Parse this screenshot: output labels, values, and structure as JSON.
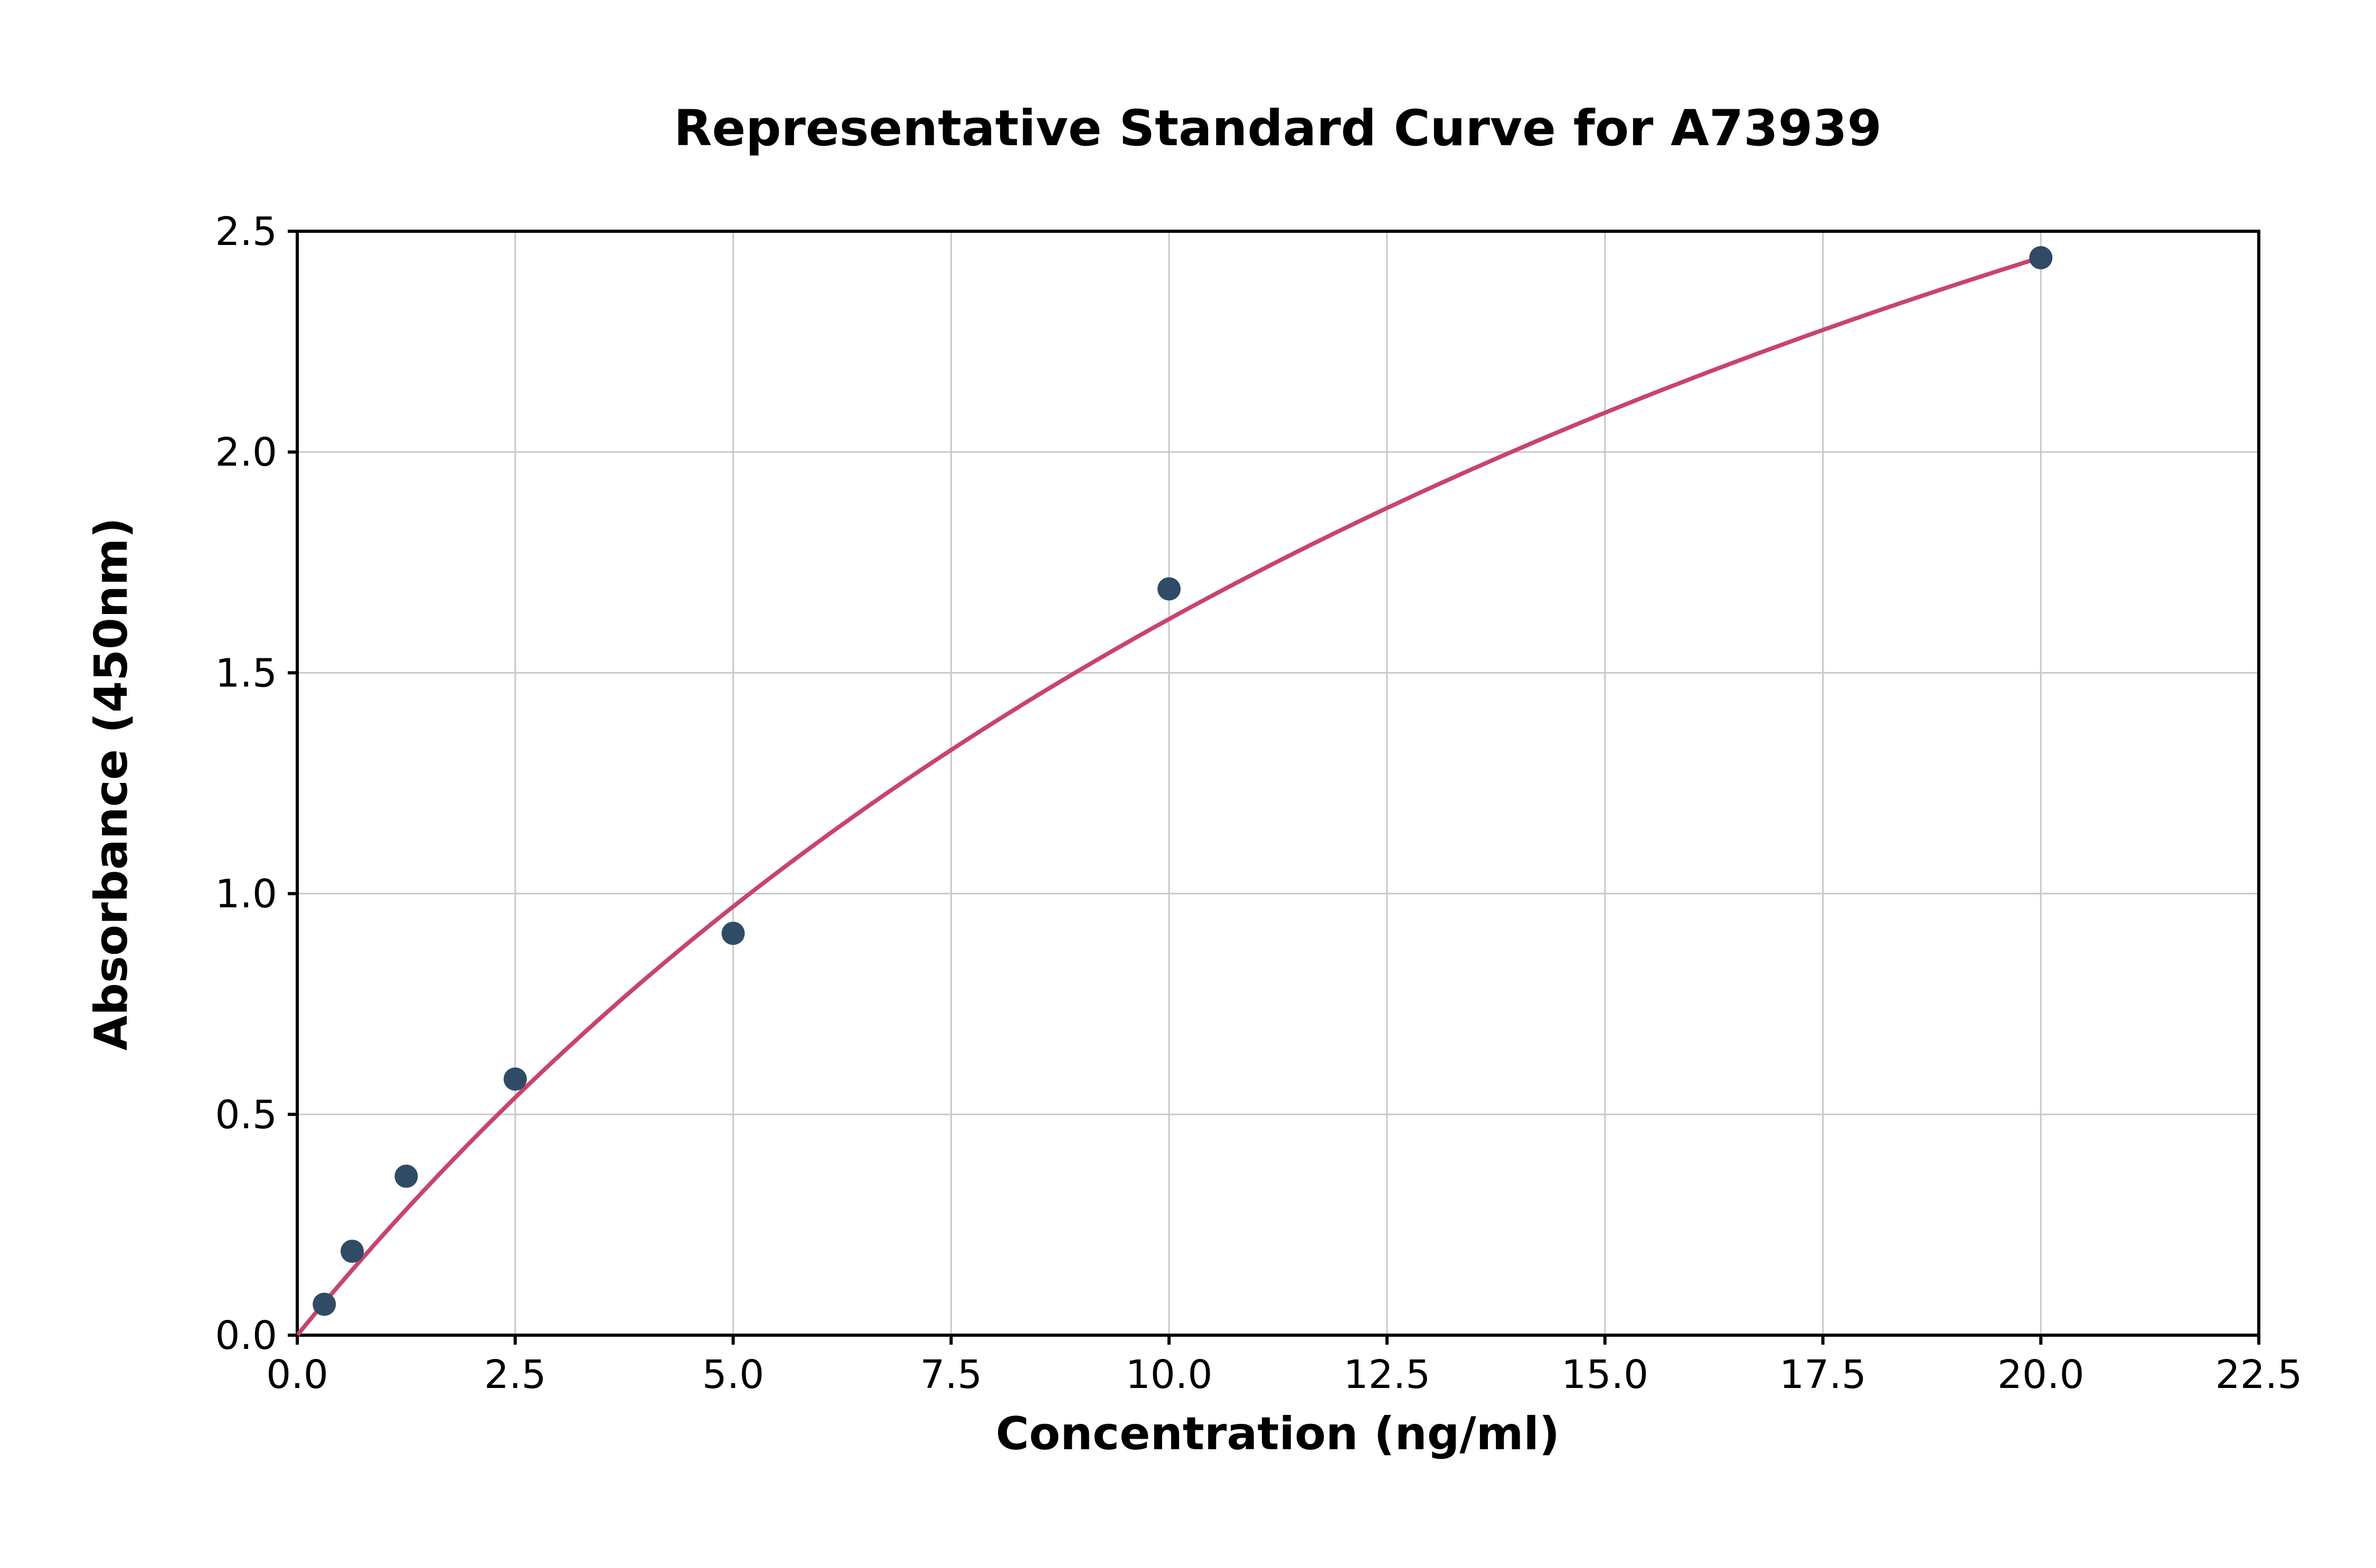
{
  "chart_data": {
    "type": "scatter",
    "title": "Representative Standard Curve for A73939",
    "xlabel": "Concentration (ng/ml)",
    "ylabel": "Absorbance (450nm)",
    "xlim": [
      0,
      22.5
    ],
    "ylim": [
      0,
      2.5
    ],
    "x_ticks": [
      0.0,
      2.5,
      5.0,
      7.5,
      10.0,
      12.5,
      15.0,
      17.5,
      20.0,
      22.5
    ],
    "x_tick_labels": [
      "0.0",
      "2.5",
      "5.0",
      "7.5",
      "10.0",
      "12.5",
      "15.0",
      "17.5",
      "20.0",
      "22.5"
    ],
    "y_ticks": [
      0.0,
      0.5,
      1.0,
      1.5,
      2.0,
      2.5
    ],
    "y_tick_labels": [
      "0.0",
      "0.5",
      "1.0",
      "1.5",
      "2.0",
      "2.5"
    ],
    "grid": true,
    "legend": "none",
    "points": [
      {
        "x": 0.31,
        "y": 0.07
      },
      {
        "x": 0.63,
        "y": 0.19
      },
      {
        "x": 1.25,
        "y": 0.36
      },
      {
        "x": 2.5,
        "y": 0.58
      },
      {
        "x": 5.0,
        "y": 0.91
      },
      {
        "x": 10.0,
        "y": 1.69
      },
      {
        "x": 20.0,
        "y": 2.44
      }
    ],
    "fit_curve": {
      "model": "y = a*x / (b + x)",
      "a": 4.93,
      "b": 20.4,
      "x_start": 0,
      "x_end": 20.0
    },
    "colors": {
      "curve": "#c8446c",
      "points": "#2f4b66",
      "grid": "#c8c8c8",
      "frame": "#000000",
      "background": "#ffffff"
    }
  }
}
